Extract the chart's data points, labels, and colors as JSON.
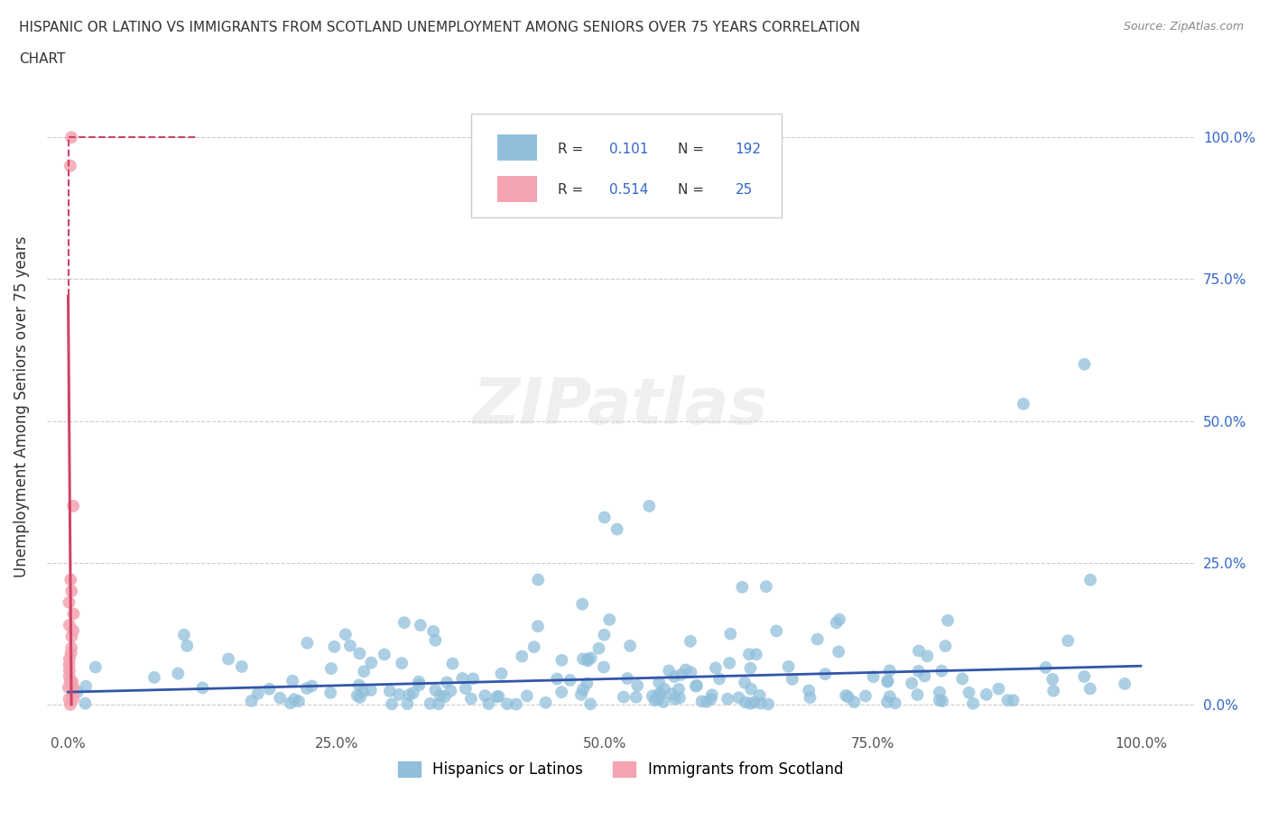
{
  "title_line1": "HISPANIC OR LATINO VS IMMIGRANTS FROM SCOTLAND UNEMPLOYMENT AMONG SENIORS OVER 75 YEARS CORRELATION",
  "title_line2": "CHART",
  "source_text": "Source: ZipAtlas.com",
  "ylabel": "Unemployment Among Seniors over 75 years",
  "xlim": [
    -0.02,
    1.05
  ],
  "ylim": [
    -0.05,
    1.1
  ],
  "yticks": [
    0.0,
    0.25,
    0.5,
    0.75,
    1.0
  ],
  "ytick_labels": [
    "0.0%",
    "25.0%",
    "50.0%",
    "75.0%",
    "100.0%"
  ],
  "xticks": [
    0.0,
    0.25,
    0.5,
    0.75,
    1.0
  ],
  "xtick_labels": [
    "0.0%",
    "25.0%",
    "50.0%",
    "75.0%",
    "100.0%"
  ],
  "blue_color": "#91BFDB",
  "pink_color": "#F4A4B0",
  "blue_line_color": "#3355AA",
  "pink_line_color": "#CC4466",
  "blue_R": 0.101,
  "blue_N": 192,
  "pink_R": 0.514,
  "pink_N": 25,
  "blue_name": "Hispanics or Latinos",
  "pink_name": "Immigrants from Scotland",
  "grid_color": "#CCCCCC",
  "background_color": "#FFFFFF",
  "watermark": "ZIPatlas",
  "legend_R_color": "#3366CC",
  "legend_N_color": "#3366CC"
}
